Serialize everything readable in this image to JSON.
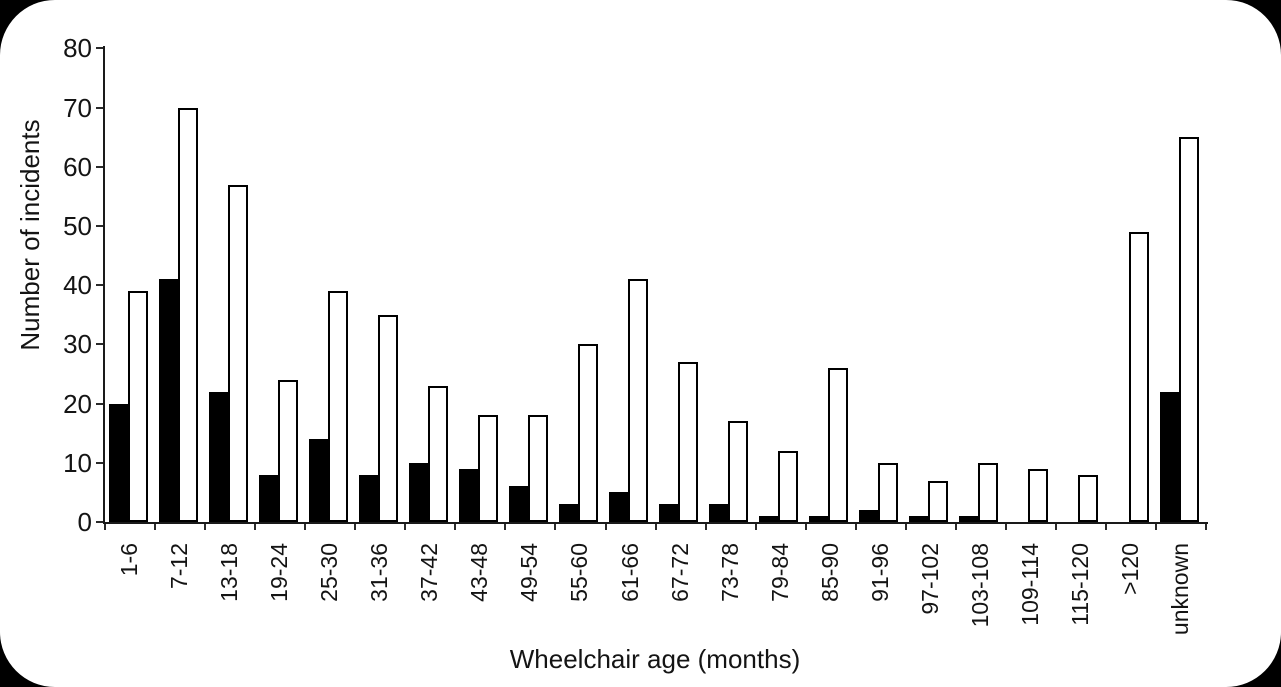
{
  "frame": {
    "background": "#000000",
    "card_background": "#ffffff"
  },
  "chart_data": {
    "type": "bar",
    "title": "",
    "xlabel": "Wheelchair age (months)",
    "ylabel": "Number of incidents",
    "categories": [
      "1-6",
      "7-12",
      "13-18",
      "19-24",
      "25-30",
      "31-36",
      "37-42",
      "43-48",
      "49-54",
      "55-60",
      "61-66",
      "67-72",
      "73-78",
      "79-84",
      "85-90",
      "91-96",
      "97-102",
      "103-108",
      "109-114",
      "115-120",
      ">120",
      "unknown"
    ],
    "series": [
      {
        "name": "filled-black-bars",
        "color": "#000000",
        "values": [
          20,
          41,
          22,
          8,
          14,
          8,
          10,
          9,
          6,
          3,
          5,
          3,
          3,
          1,
          1,
          2,
          1,
          1,
          0,
          0,
          0,
          22
        ]
      },
      {
        "name": "open-white-bars",
        "color": "#ffffff",
        "values": [
          39,
          70,
          57,
          24,
          39,
          35,
          23,
          18,
          18,
          30,
          41,
          27,
          17,
          12,
          26,
          10,
          7,
          10,
          9,
          8,
          49,
          65
        ]
      }
    ],
    "ylim": [
      0,
      80
    ],
    "yticks": [
      0,
      10,
      20,
      30,
      40,
      50,
      60,
      70,
      80
    ],
    "grid": false,
    "legend": false,
    "bar_outline_color": "#000000"
  }
}
